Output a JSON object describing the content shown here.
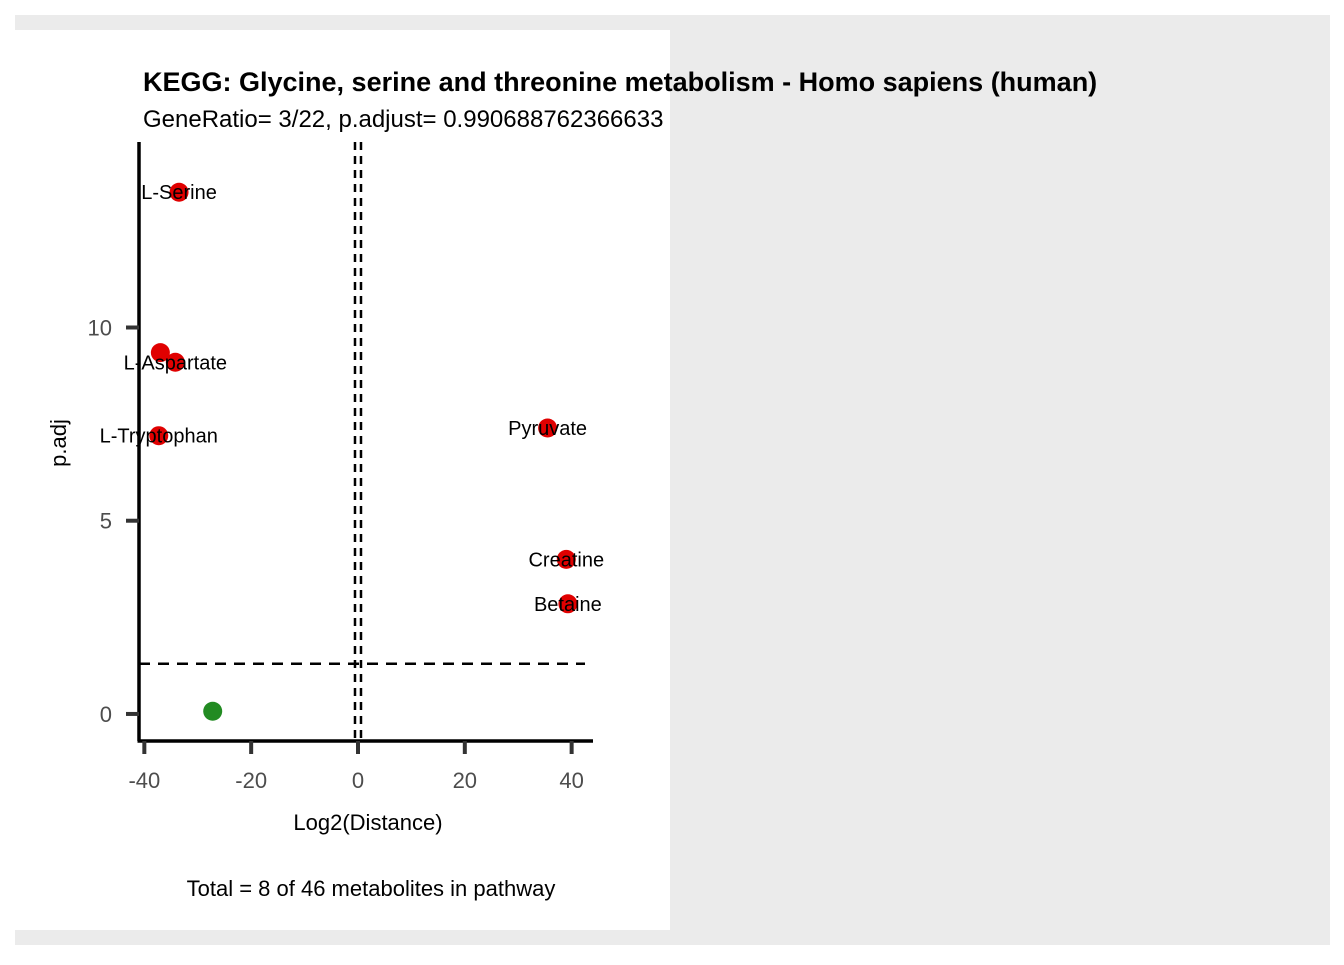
{
  "chart_data": {
    "type": "scatter",
    "title": "KEGG: Glycine, serine and threonine metabolism - Homo sapiens (human)",
    "subtitle": "GeneRatio= 3/22, p.adjust= 0.990688762366633",
    "xlabel": "Log2(Distance)",
    "ylabel": "p.adj",
    "caption": "Total = 8 of 46 metabolites in pathway",
    "xlim": [
      -41,
      44
    ],
    "ylim": [
      -0.7,
      14.8
    ],
    "x_ticks": [
      -40,
      -20,
      0,
      20,
      40
    ],
    "y_ticks": [
      0,
      5,
      10
    ],
    "thresholds": {
      "vertical": 0,
      "horizontal": 1.3
    },
    "grid": false,
    "legend": "none",
    "colors": {
      "significant": "#e00000",
      "nonsignificant": "#228b22",
      "outer_background": "#ebebeb"
    },
    "points": [
      {
        "label": "L-Serine",
        "x": -33.5,
        "y": 13.5,
        "group": "significant"
      },
      {
        "label": "",
        "x": -37.0,
        "y": 9.35,
        "group": "significant"
      },
      {
        "label": "L-Aspartate",
        "x": -34.2,
        "y": 9.1,
        "group": "significant"
      },
      {
        "label": "L-Tryptophan",
        "x": -37.3,
        "y": 7.2,
        "group": "significant"
      },
      {
        "label": "Pyruvate",
        "x": 35.5,
        "y": 7.4,
        "group": "significant"
      },
      {
        "label": "Creatine",
        "x": 39.0,
        "y": 4.0,
        "group": "significant"
      },
      {
        "label": "Betaine",
        "x": 39.3,
        "y": 2.85,
        "group": "significant"
      },
      {
        "label": "",
        "x": -27.2,
        "y": 0.07,
        "group": "nonsignificant"
      }
    ]
  }
}
